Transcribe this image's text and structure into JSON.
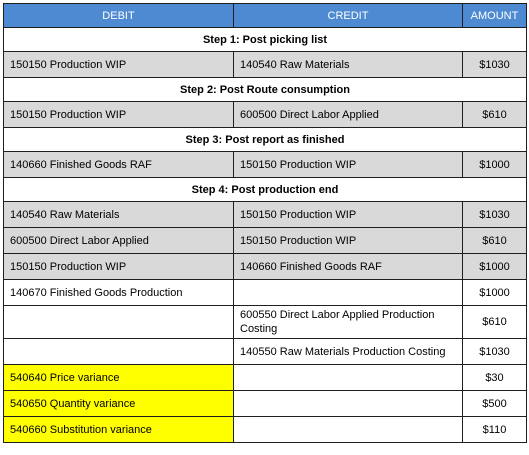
{
  "headers": {
    "debit": "DEBIT",
    "credit": "CREDIT",
    "amount": "AMOUNT"
  },
  "steps": [
    {
      "title": "Step 1: Post picking list",
      "rows": [
        {
          "debit": "150150 Production WIP",
          "credit": "140540 Raw Materials",
          "amount": "$1030"
        }
      ]
    },
    {
      "title": "Step 2: Post Route consumption",
      "rows": [
        {
          "debit": "150150 Production WIP",
          "credit": "600500 Direct Labor Applied",
          "amount": "$610"
        }
      ]
    },
    {
      "title": "Step 3: Post report as finished",
      "rows": [
        {
          "debit": "140660 Finished Goods RAF",
          "credit": "150150 Production WIP",
          "amount": "$1000"
        }
      ]
    },
    {
      "title": "Step 4: Post production end",
      "rows": [
        {
          "debit": "140540 Raw Materials",
          "credit": "150150 Production WIP",
          "amount": "$1030"
        },
        {
          "debit": "600500 Direct Labor Applied",
          "credit": "150150 Production WIP",
          "amount": "$610"
        },
        {
          "debit": "150150 Production WIP",
          "credit": "140660 Finished Goods RAF",
          "amount": "$1000"
        },
        {
          "debit": "140670 Finished Goods Production",
          "credit": "",
          "amount": "$1000"
        },
        {
          "debit": "",
          "credit": "600550 Direct Labor Applied Production Costing",
          "amount": "$610"
        },
        {
          "debit": "",
          "credit": "140550 Raw Materials Production Costing",
          "amount": "$1030"
        },
        {
          "debit": "540640 Price variance",
          "credit": "",
          "amount": "$30"
        },
        {
          "debit": "540650 Quantity variance",
          "credit": "",
          "amount": "$500"
        },
        {
          "debit": "540660 Substitution variance",
          "credit": "",
          "amount": "$110"
        }
      ]
    }
  ],
  "colors": {
    "header_bg": "#4e8ad2",
    "shaded_row_bg": "#d9d9d9",
    "highlight_bg": "#ffff00",
    "border": "#1f1f1f"
  }
}
